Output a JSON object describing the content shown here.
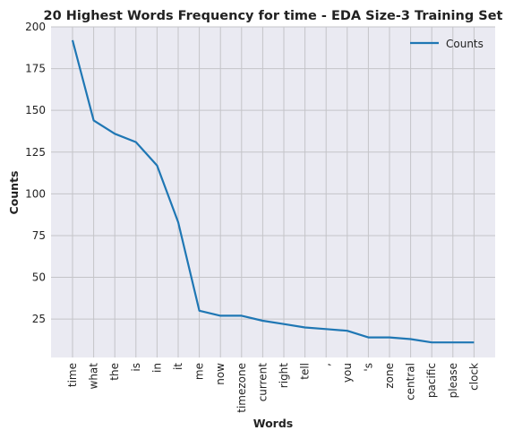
{
  "chart_data": {
    "type": "line",
    "title": "20 Highest Words Frequency for time - EDA Size-3 Training Set",
    "xlabel": "Words",
    "ylabel": "Counts",
    "categories": [
      "time",
      "what",
      "the",
      "is",
      "in",
      "it",
      "me",
      "now",
      "timezone",
      "current",
      "right",
      "tell",
      ",",
      "you",
      "'s",
      "zone",
      "central",
      "pacific",
      "please",
      "clock"
    ],
    "series": [
      {
        "name": "Counts",
        "values": [
          192,
          144,
          136,
          131,
          117,
          83,
          30,
          27,
          27,
          24,
          22,
          20,
          19,
          18,
          14,
          14,
          13,
          11,
          11,
          11
        ]
      }
    ],
    "yticks": [
      25,
      50,
      75,
      100,
      125,
      150,
      175,
      200
    ],
    "ylim": [
      2,
      200
    ],
    "grid": true,
    "legend_position": "top-right",
    "line_color": "#1f77b4"
  }
}
